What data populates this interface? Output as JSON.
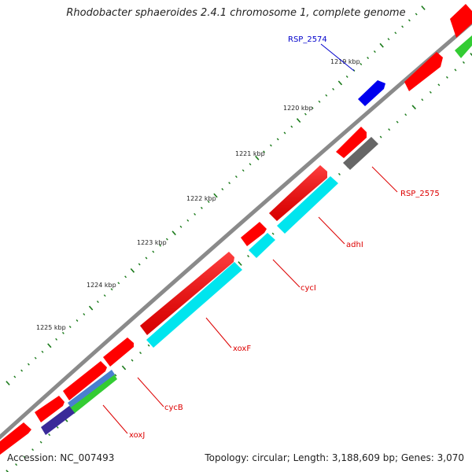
{
  "title": "Rhodobacter sphaeroides 2.4.1 chromosome 1, complete genome",
  "accession": "Accession: NC_007493",
  "summary": "Topology: circular; Length: 3,188,609 bp; Genes: 3,070",
  "ticks": [
    "1219 kbp",
    "1220 kbp",
    "1221 kbp",
    "1222 kbp",
    "1223 kbp",
    "1224 kbp",
    "1225 kbp"
  ],
  "colors": {
    "backbone": "#8a8a8a",
    "cds_forward": "#ff0000",
    "cds_reverse": "#00ffff",
    "blast_green": "#33cc33",
    "blast_blue": "#3355ff",
    "blast_grey": "#666666",
    "blast_purple": "#3a2a99",
    "tick": "#1a7a1a",
    "label_red": "#dd0000",
    "label_blue": "#0000cc"
  },
  "gene_labels": [
    {
      "name": "RSP_2574",
      "color": "blue"
    },
    {
      "name": "RSP_2575",
      "color": "red"
    },
    {
      "name": "adhI",
      "color": "red"
    },
    {
      "name": "cycI",
      "color": "red"
    },
    {
      "name": "xoxF",
      "color": "red"
    },
    {
      "name": "cycB",
      "color": "red"
    },
    {
      "name": "xoxJ",
      "color": "red"
    }
  ]
}
